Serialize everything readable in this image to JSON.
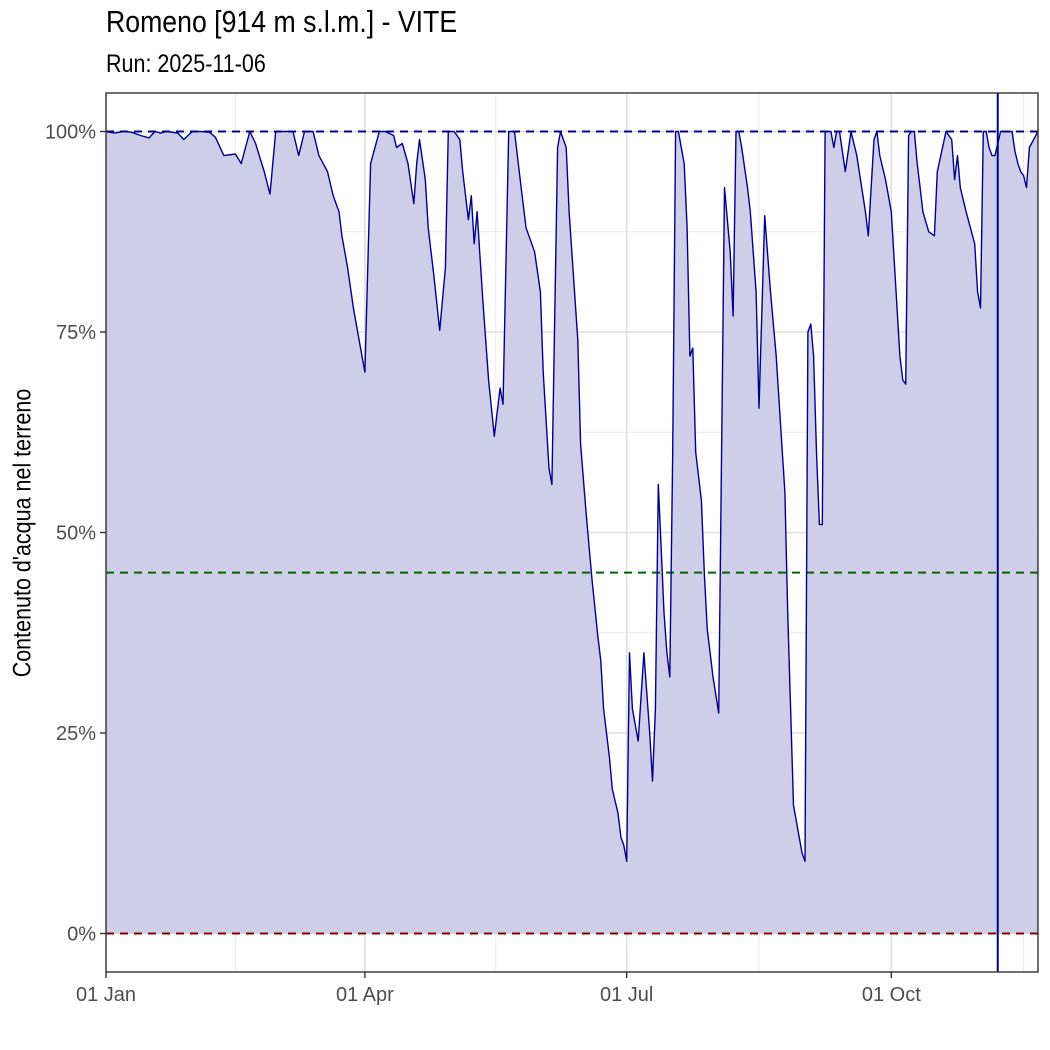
{
  "chart_data": {
    "type": "area",
    "title": "Romeno [914 m s.l.m.] - VITE",
    "subtitle": "Run: 2025-11-06",
    "xlabel": "",
    "ylabel": "Contenuto d'acqua nel terreno",
    "x_ticks": [
      {
        "label": "01 Jan",
        "day": 1
      },
      {
        "label": "01 Apr",
        "day": 91
      },
      {
        "label": "01 Jul",
        "day": 182
      },
      {
        "label": "01 Oct",
        "day": 274
      }
    ],
    "y_ticks": [
      {
        "label": "0%",
        "value": 0
      },
      {
        "label": "25%",
        "value": 25
      },
      {
        "label": "50%",
        "value": 50
      },
      {
        "label": "75%",
        "value": 75
      },
      {
        "label": "100%",
        "value": 100
      }
    ],
    "xlim_day": [
      1,
      325
    ],
    "ylim": [
      -4.8,
      104.8
    ],
    "grid": true,
    "colors": {
      "line": "#00008b",
      "fill": "#cbcbe8",
      "upper_ref": "#00008b",
      "mid_ref": "#006400",
      "lower_ref": "#8b0000",
      "run_marker": "#00008b"
    },
    "reference_lines": [
      {
        "value": 100,
        "color": "#00008b",
        "style": "dashed"
      },
      {
        "value": 45,
        "color": "#006400",
        "style": "dashed"
      },
      {
        "value": 0,
        "color": "#8b0000",
        "style": "dashed"
      }
    ],
    "run_day": 311,
    "series": [
      {
        "day_of_year": [
          1,
          4,
          7,
          10,
          13,
          16,
          18,
          20,
          22,
          26,
          28,
          31,
          34,
          37,
          39,
          42,
          46,
          48,
          51,
          53,
          56,
          58,
          60,
          62,
          63,
          65,
          66,
          68,
          70,
          73,
          75,
          78,
          80,
          82,
          83,
          85,
          87,
          89,
          91,
          93,
          96,
          98,
          101,
          102,
          104,
          106,
          108,
          109,
          110,
          112,
          113,
          115,
          117,
          119,
          120,
          122,
          124,
          125,
          127,
          128,
          129,
          130,
          132,
          134,
          136,
          138,
          139,
          141,
          143,
          145,
          147,
          150,
          152,
          153,
          155,
          156,
          158,
          159,
          161,
          162,
          165,
          166,
          168,
          170,
          172,
          173,
          174,
          175,
          176,
          177,
          179,
          180,
          181,
          182,
          183,
          184,
          186,
          188,
          189,
          190,
          191,
          192,
          193,
          194,
          195,
          196,
          197,
          198,
          199,
          200,
          202,
          203,
          204,
          205,
          206,
          208,
          209,
          210,
          212,
          214,
          216,
          218,
          219,
          220,
          221,
          222,
          224,
          225,
          227,
          228,
          230,
          232,
          234,
          237,
          238,
          239,
          240,
          242,
          243,
          244,
          245,
          246,
          247,
          248,
          249,
          250,
          251,
          252,
          253,
          254,
          255,
          256,
          258,
          260,
          262,
          265,
          266,
          268,
          269,
          270,
          272,
          274,
          277,
          278,
          279,
          280,
          281,
          282,
          283,
          284,
          285,
          287,
          289,
          290,
          293,
          295,
          296,
          297,
          298,
          300,
          303,
          304,
          305,
          306,
          307,
          308,
          309,
          310,
          312,
          314,
          316,
          317,
          318,
          319,
          320,
          321,
          322,
          325
        ],
        "values": [
          100,
          99.8,
          100,
          99.9,
          99.5,
          99.2,
          100,
          99.8,
          100,
          99.8,
          99,
          100,
          100,
          99.9,
          99.3,
          97,
          97.2,
          96,
          100,
          98.5,
          95,
          92.2,
          100,
          100,
          100,
          100,
          100,
          97,
          100,
          100,
          97,
          95,
          92,
          90,
          87,
          83,
          78,
          74,
          70,
          96,
          100,
          100,
          99.5,
          98,
          98.5,
          96,
          91,
          96,
          99,
          94,
          88,
          82,
          75.2,
          83,
          100,
          100,
          99,
          95,
          89,
          92,
          86,
          90,
          79,
          69,
          62,
          68,
          66,
          100,
          100,
          94,
          88,
          85,
          80,
          70,
          58,
          56,
          98,
          100,
          98,
          90,
          74,
          61,
          52,
          44,
          37,
          34,
          28,
          25,
          22,
          18,
          15,
          12,
          11,
          9,
          35,
          28,
          24,
          35,
          30,
          25,
          19,
          28,
          56,
          48,
          40,
          35,
          32,
          60,
          100,
          100,
          96,
          88,
          72,
          73,
          60,
          54,
          45,
          38,
          32,
          27.5,
          93,
          85,
          77,
          100,
          100,
          98,
          93,
          90,
          80,
          65.5,
          89.5,
          80,
          72,
          55,
          40,
          28,
          16,
          12,
          10,
          9,
          75,
          76,
          72,
          60,
          51,
          51,
          100,
          100,
          100,
          98,
          100,
          100,
          95,
          100,
          97,
          90,
          87,
          99,
          100,
          97,
          94,
          90,
          72,
          69,
          68.5,
          99.5,
          100,
          100,
          96,
          93,
          90,
          87.5,
          87,
          95,
          100,
          99,
          94,
          97,
          93,
          90,
          86,
          80,
          78,
          100,
          100,
          98,
          97,
          97,
          100,
          100,
          100,
          97.5,
          96,
          95,
          94.5,
          93,
          98,
          100,
          100,
          100
        ]
      }
    ]
  }
}
